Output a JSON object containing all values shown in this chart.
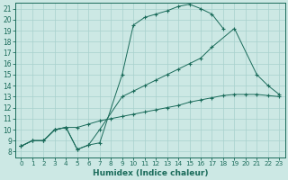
{
  "xlabel": "Humidex (Indice chaleur)",
  "xlim": [
    -0.5,
    23.5
  ],
  "ylim": [
    7.5,
    21.5
  ],
  "xticks": [
    0,
    1,
    2,
    3,
    4,
    5,
    6,
    7,
    8,
    9,
    10,
    11,
    12,
    13,
    14,
    15,
    16,
    17,
    18,
    19,
    20,
    21,
    22,
    23
  ],
  "yticks": [
    8,
    9,
    10,
    11,
    12,
    13,
    14,
    15,
    16,
    17,
    18,
    19,
    20,
    21
  ],
  "bg_color": "#cce8e4",
  "grid_color": "#a8d0cc",
  "line_color": "#1a6b5a",
  "line_a_x": [
    0,
    1,
    2,
    3,
    4,
    5,
    6,
    7,
    9,
    10,
    11,
    12,
    13,
    14,
    15,
    16,
    17,
    18
  ],
  "line_a_y": [
    8.5,
    9.0,
    9.0,
    10.0,
    10.2,
    8.2,
    8.6,
    8.8,
    15.0,
    19.5,
    20.2,
    20.5,
    20.8,
    21.2,
    21.4,
    21.0,
    20.5,
    19.2
  ],
  "line_b_x": [
    0,
    1,
    2,
    3,
    4,
    5,
    6,
    7,
    9,
    10,
    11,
    12,
    13,
    14,
    15,
    16,
    17,
    19,
    21,
    22,
    23
  ],
  "line_b_y": [
    8.5,
    9.0,
    9.0,
    10.0,
    10.2,
    8.2,
    8.6,
    10.0,
    13.0,
    13.5,
    14.0,
    14.5,
    15.0,
    15.5,
    16.0,
    16.5,
    17.5,
    19.2,
    15.0,
    14.0,
    13.2
  ],
  "line_c_x": [
    0,
    1,
    2,
    3,
    4,
    5,
    6,
    7,
    8,
    9,
    10,
    11,
    12,
    13,
    14,
    15,
    16,
    17,
    18,
    19,
    20,
    21,
    22,
    23
  ],
  "line_c_y": [
    8.5,
    9.0,
    9.0,
    10.0,
    10.2,
    10.2,
    10.5,
    10.8,
    11.0,
    11.2,
    11.4,
    11.6,
    11.8,
    12.0,
    12.2,
    12.5,
    12.7,
    12.9,
    13.1,
    13.2,
    13.2,
    13.2,
    13.1,
    13.0
  ]
}
